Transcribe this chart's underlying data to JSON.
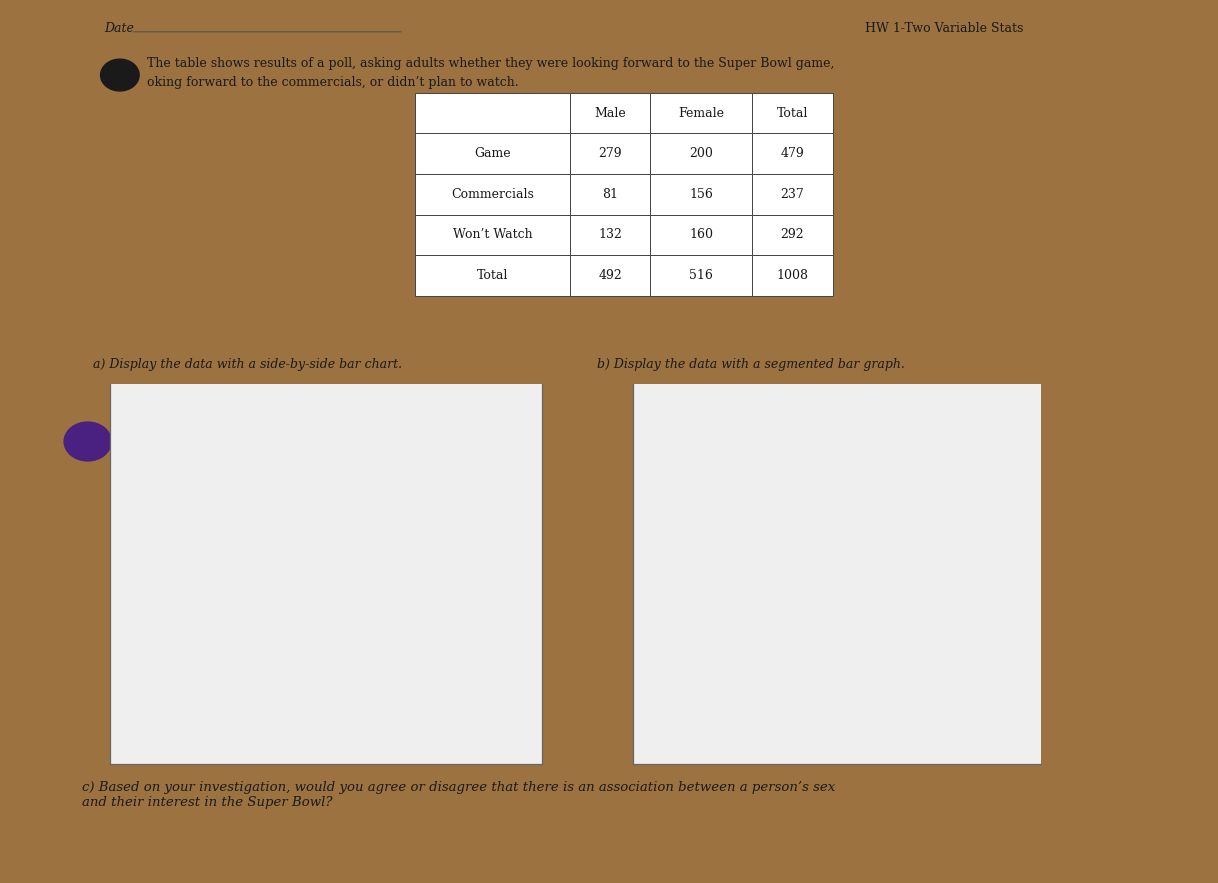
{
  "title_text": "The table shows results of a poll, asking adults whether they were looking forward to the Super Bowl game,",
  "title_text2": "oking forward to the commercials, or didn’t plan to watch.",
  "table_headers": [
    "",
    "Male",
    "Female",
    "Total"
  ],
  "table_rows": [
    [
      "Game",
      "279",
      "200",
      "479"
    ],
    [
      "Commercials",
      "81",
      "156",
      "237"
    ],
    [
      "Won’t Watch",
      "132",
      "160",
      "292"
    ],
    [
      "Total",
      "492",
      "516",
      "1008"
    ]
  ],
  "label_a": "a) Display the data with a side-by-side bar chart.",
  "label_b": "b) Display the data with a segmented bar graph.",
  "label_c": "c) Based on your investigation, would you agree or disagree that there is an association between a person’s sex\nand their interest in the Super Bowl?",
  "paper_color": "#efefef",
  "text_color": "#1a1a1a",
  "table_border_color": "#444444",
  "axes_color": "#666666",
  "purple_color": "#4a2080",
  "wood_color": "#9b7240",
  "hole_color": "#4a2080",
  "date_line_color": "#555555"
}
